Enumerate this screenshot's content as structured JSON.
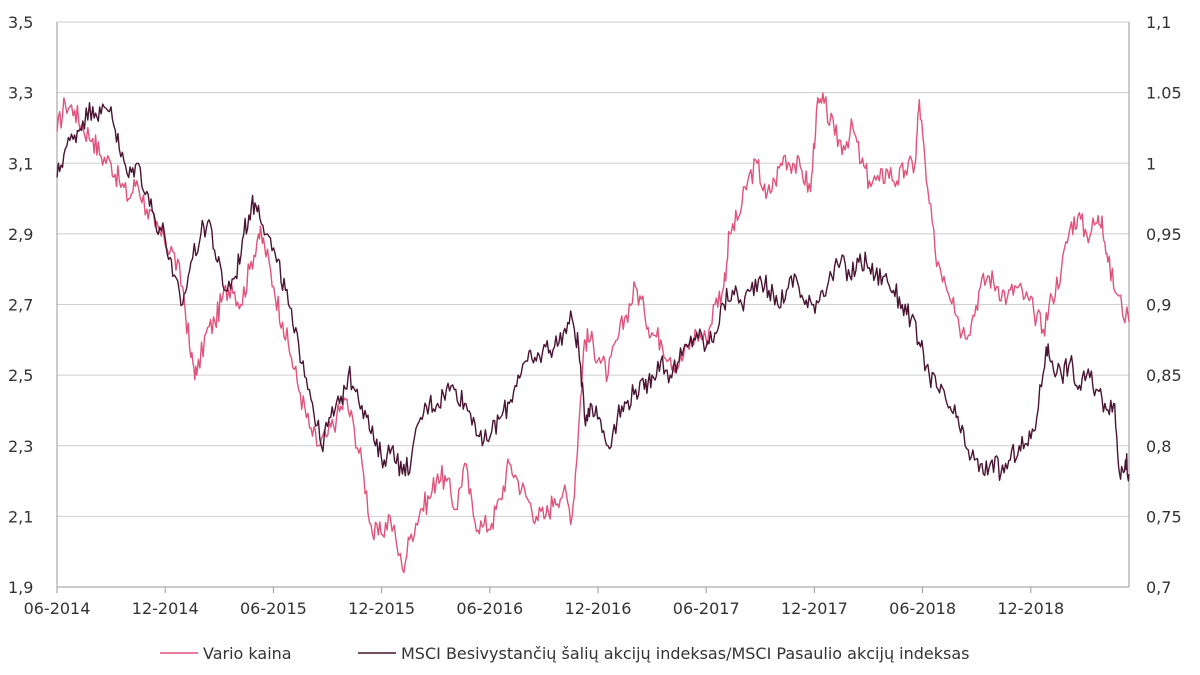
{
  "chart_data": {
    "type": "line",
    "title": "",
    "xlabel": "",
    "ylabel": "",
    "y2label": "",
    "x_ticks": [
      "06-2014",
      "12-2014",
      "06-2015",
      "12-2015",
      "06-2016",
      "12-2016",
      "06-2017",
      "12-2017",
      "06-2018",
      "12-2018"
    ],
    "x_range": [
      "2014-06-01",
      "2019-05-31"
    ],
    "ylim_left": [
      1.9,
      3.5
    ],
    "yticks_left": [
      "1,9",
      "2,1",
      "2,3",
      "2,5",
      "2,7",
      "2,9",
      "3,1",
      "3,3",
      "3,5"
    ],
    "ylim_right": [
      0.7,
      1.1
    ],
    "yticks_right": [
      "0,7",
      "0,75",
      "0,8",
      "0,85",
      "0,9",
      "0,95",
      "1",
      "1.05",
      "1,1"
    ],
    "grid": "horizontal",
    "legend_position": "bottom",
    "series": [
      {
        "name": "Vario kaina",
        "axis": "left",
        "color": "#e0537c",
        "points": [
          [
            "2014-06-01",
            3.19
          ],
          [
            "2014-06-15",
            3.27
          ],
          [
            "2014-07-01",
            3.25
          ],
          [
            "2014-07-15",
            3.2
          ],
          [
            "2014-08-01",
            3.17
          ],
          [
            "2014-08-15",
            3.12
          ],
          [
            "2014-09-01",
            3.1
          ],
          [
            "2014-09-15",
            3.05
          ],
          [
            "2014-10-01",
            3.0
          ],
          [
            "2014-10-15",
            3.05
          ],
          [
            "2014-11-01",
            2.97
          ],
          [
            "2014-11-15",
            2.92
          ],
          [
            "2014-12-01",
            2.88
          ],
          [
            "2014-12-15",
            2.85
          ],
          [
            "2015-01-01",
            2.75
          ],
          [
            "2015-01-15",
            2.55
          ],
          [
            "2015-01-25",
            2.5
          ],
          [
            "2015-02-10",
            2.62
          ],
          [
            "2015-02-25",
            2.65
          ],
          [
            "2015-03-10",
            2.72
          ],
          [
            "2015-03-25",
            2.76
          ],
          [
            "2015-04-10",
            2.7
          ],
          [
            "2015-04-25",
            2.8
          ],
          [
            "2015-05-10",
            2.9
          ],
          [
            "2015-05-20",
            2.87
          ],
          [
            "2015-06-05",
            2.75
          ],
          [
            "2015-06-20",
            2.65
          ],
          [
            "2015-07-05",
            2.55
          ],
          [
            "2015-07-20",
            2.45
          ],
          [
            "2015-08-05",
            2.35
          ],
          [
            "2015-08-20",
            2.3
          ],
          [
            "2015-09-05",
            2.33
          ],
          [
            "2015-09-20",
            2.38
          ],
          [
            "2015-10-05",
            2.43
          ],
          [
            "2015-10-20",
            2.35
          ],
          [
            "2015-11-05",
            2.22
          ],
          [
            "2015-11-20",
            2.05
          ],
          [
            "2015-12-05",
            2.05
          ],
          [
            "2015-12-20",
            2.1
          ],
          [
            "2016-01-10",
            1.95
          ],
          [
            "2016-01-25",
            2.05
          ],
          [
            "2016-02-10",
            2.12
          ],
          [
            "2016-02-25",
            2.15
          ],
          [
            "2016-03-10",
            2.22
          ],
          [
            "2016-03-25",
            2.2
          ],
          [
            "2016-04-10",
            2.12
          ],
          [
            "2016-04-25",
            2.25
          ],
          [
            "2016-05-10",
            2.1
          ],
          [
            "2016-05-25",
            2.07
          ],
          [
            "2016-06-10",
            2.08
          ],
          [
            "2016-06-25",
            2.15
          ],
          [
            "2016-07-10",
            2.25
          ],
          [
            "2016-07-25",
            2.2
          ],
          [
            "2016-08-10",
            2.15
          ],
          [
            "2016-08-25",
            2.1
          ],
          [
            "2016-09-10",
            2.1
          ],
          [
            "2016-09-25",
            2.15
          ],
          [
            "2016-10-10",
            2.17
          ],
          [
            "2016-10-25",
            2.1
          ],
          [
            "2016-11-05",
            2.35
          ],
          [
            "2016-11-15",
            2.6
          ],
          [
            "2016-11-25",
            2.6
          ],
          [
            "2016-12-10",
            2.55
          ],
          [
            "2016-12-25",
            2.5
          ],
          [
            "2017-01-10",
            2.6
          ],
          [
            "2017-01-25",
            2.67
          ],
          [
            "2017-02-10",
            2.75
          ],
          [
            "2017-02-25",
            2.68
          ],
          [
            "2017-03-10",
            2.62
          ],
          [
            "2017-03-25",
            2.6
          ],
          [
            "2017-04-10",
            2.55
          ],
          [
            "2017-04-25",
            2.53
          ],
          [
            "2017-05-10",
            2.58
          ],
          [
            "2017-05-25",
            2.62
          ],
          [
            "2017-06-10",
            2.6
          ],
          [
            "2017-06-25",
            2.7
          ],
          [
            "2017-07-10",
            2.75
          ],
          [
            "2017-07-20",
            2.9
          ],
          [
            "2017-08-05",
            2.95
          ],
          [
            "2017-08-20",
            3.05
          ],
          [
            "2017-09-05",
            3.1
          ],
          [
            "2017-09-20",
            3.0
          ],
          [
            "2017-10-05",
            3.05
          ],
          [
            "2017-10-20",
            3.12
          ],
          [
            "2017-11-05",
            3.1
          ],
          [
            "2017-11-20",
            3.08
          ],
          [
            "2017-12-05",
            3.02
          ],
          [
            "2017-12-15",
            3.25
          ],
          [
            "2017-12-28",
            3.27
          ],
          [
            "2018-01-15",
            3.18
          ],
          [
            "2018-01-30",
            3.15
          ],
          [
            "2018-02-15",
            3.2
          ],
          [
            "2018-03-01",
            3.1
          ],
          [
            "2018-03-15",
            3.05
          ],
          [
            "2018-04-01",
            3.05
          ],
          [
            "2018-04-15",
            3.08
          ],
          [
            "2018-05-01",
            3.05
          ],
          [
            "2018-05-15",
            3.08
          ],
          [
            "2018-06-01",
            3.1
          ],
          [
            "2018-06-08",
            3.28
          ],
          [
            "2018-06-20",
            3.05
          ],
          [
            "2018-07-05",
            2.85
          ],
          [
            "2018-07-20",
            2.78
          ],
          [
            "2018-08-05",
            2.72
          ],
          [
            "2018-08-20",
            2.62
          ],
          [
            "2018-09-05",
            2.65
          ],
          [
            "2018-09-20",
            2.75
          ],
          [
            "2018-10-05",
            2.78
          ],
          [
            "2018-10-20",
            2.75
          ],
          [
            "2018-11-05",
            2.72
          ],
          [
            "2018-11-20",
            2.75
          ],
          [
            "2018-12-05",
            2.72
          ],
          [
            "2018-12-20",
            2.68
          ],
          [
            "2019-01-05",
            2.63
          ],
          [
            "2019-01-20",
            2.72
          ],
          [
            "2019-02-05",
            2.8
          ],
          [
            "2019-02-20",
            2.92
          ],
          [
            "2019-03-05",
            2.95
          ],
          [
            "2019-03-20",
            2.9
          ],
          [
            "2019-04-05",
            2.93
          ],
          [
            "2019-04-15",
            2.95
          ],
          [
            "2019-04-25",
            2.82
          ],
          [
            "2019-05-10",
            2.73
          ],
          [
            "2019-05-31",
            2.65
          ]
        ]
      },
      {
        "name": "MSCI Besivystančių šalių akcijų indeksas/MSCI Pasaulio akcijų indeksas",
        "axis": "right",
        "color": "#4a1532",
        "points": [
          [
            "2014-06-01",
            0.99
          ],
          [
            "2014-06-15",
            1.01
          ],
          [
            "2014-07-01",
            1.02
          ],
          [
            "2014-07-15",
            1.03
          ],
          [
            "2014-08-01",
            1.04
          ],
          [
            "2014-08-15",
            1.035
          ],
          [
            "2014-09-01",
            1.04
          ],
          [
            "2014-09-15",
            1.01
          ],
          [
            "2014-10-01",
            0.99
          ],
          [
            "2014-10-15",
            1.0
          ],
          [
            "2014-11-01",
            0.98
          ],
          [
            "2014-11-15",
            0.96
          ],
          [
            "2014-12-01",
            0.95
          ],
          [
            "2014-12-15",
            0.92
          ],
          [
            "2015-01-01",
            0.9
          ],
          [
            "2015-01-15",
            0.93
          ],
          [
            "2015-02-01",
            0.95
          ],
          [
            "2015-02-15",
            0.96
          ],
          [
            "2015-03-01",
            0.93
          ],
          [
            "2015-03-15",
            0.91
          ],
          [
            "2015-04-01",
            0.92
          ],
          [
            "2015-04-15",
            0.95
          ],
          [
            "2015-04-28",
            0.97
          ],
          [
            "2015-05-10",
            0.97
          ],
          [
            "2015-05-25",
            0.95
          ],
          [
            "2015-06-10",
            0.93
          ],
          [
            "2015-06-25",
            0.91
          ],
          [
            "2015-07-10",
            0.88
          ],
          [
            "2015-07-25",
            0.86
          ],
          [
            "2015-08-10",
            0.83
          ],
          [
            "2015-08-25",
            0.8
          ],
          [
            "2015-09-10",
            0.82
          ],
          [
            "2015-09-25",
            0.83
          ],
          [
            "2015-10-10",
            0.85
          ],
          [
            "2015-10-25",
            0.84
          ],
          [
            "2015-11-10",
            0.82
          ],
          [
            "2015-11-25",
            0.8
          ],
          [
            "2015-12-10",
            0.79
          ],
          [
            "2015-12-25",
            0.8
          ],
          [
            "2016-01-10",
            0.78
          ],
          [
            "2016-01-25",
            0.79
          ],
          [
            "2016-02-10",
            0.82
          ],
          [
            "2016-02-25",
            0.83
          ],
          [
            "2016-03-10",
            0.83
          ],
          [
            "2016-03-25",
            0.84
          ],
          [
            "2016-04-10",
            0.84
          ],
          [
            "2016-04-25",
            0.83
          ],
          [
            "2016-05-10",
            0.82
          ],
          [
            "2016-05-25",
            0.8
          ],
          [
            "2016-06-10",
            0.81
          ],
          [
            "2016-06-25",
            0.82
          ],
          [
            "2016-07-10",
            0.83
          ],
          [
            "2016-07-25",
            0.85
          ],
          [
            "2016-08-10",
            0.86
          ],
          [
            "2016-08-25",
            0.86
          ],
          [
            "2016-09-10",
            0.87
          ],
          [
            "2016-09-25",
            0.87
          ],
          [
            "2016-10-10",
            0.88
          ],
          [
            "2016-10-25",
            0.89
          ],
          [
            "2016-11-05",
            0.87
          ],
          [
            "2016-11-15",
            0.82
          ],
          [
            "2016-11-25",
            0.83
          ],
          [
            "2016-12-10",
            0.82
          ],
          [
            "2016-12-25",
            0.8
          ],
          [
            "2017-01-10",
            0.82
          ],
          [
            "2017-01-25",
            0.83
          ],
          [
            "2017-02-10",
            0.84
          ],
          [
            "2017-02-25",
            0.84
          ],
          [
            "2017-03-10",
            0.85
          ],
          [
            "2017-03-25",
            0.86
          ],
          [
            "2017-04-10",
            0.85
          ],
          [
            "2017-04-25",
            0.86
          ],
          [
            "2017-05-10",
            0.87
          ],
          [
            "2017-05-25",
            0.88
          ],
          [
            "2017-06-10",
            0.87
          ],
          [
            "2017-06-25",
            0.88
          ],
          [
            "2017-07-10",
            0.9
          ],
          [
            "2017-07-25",
            0.91
          ],
          [
            "2017-08-10",
            0.9
          ],
          [
            "2017-08-25",
            0.91
          ],
          [
            "2017-09-10",
            0.92
          ],
          [
            "2017-09-25",
            0.91
          ],
          [
            "2017-10-10",
            0.9
          ],
          [
            "2017-10-25",
            0.91
          ],
          [
            "2017-11-10",
            0.92
          ],
          [
            "2017-11-25",
            0.9
          ],
          [
            "2017-12-10",
            0.9
          ],
          [
            "2017-12-25",
            0.91
          ],
          [
            "2018-01-10",
            0.92
          ],
          [
            "2018-01-25",
            0.93
          ],
          [
            "2018-02-10",
            0.92
          ],
          [
            "2018-02-25",
            0.93
          ],
          [
            "2018-03-10",
            0.93
          ],
          [
            "2018-03-25",
            0.92
          ],
          [
            "2018-04-10",
            0.92
          ],
          [
            "2018-04-25",
            0.91
          ],
          [
            "2018-05-10",
            0.9
          ],
          [
            "2018-05-25",
            0.89
          ],
          [
            "2018-06-10",
            0.87
          ],
          [
            "2018-06-25",
            0.85
          ],
          [
            "2018-07-10",
            0.84
          ],
          [
            "2018-07-25",
            0.83
          ],
          [
            "2018-08-10",
            0.82
          ],
          [
            "2018-08-25",
            0.8
          ],
          [
            "2018-09-10",
            0.79
          ],
          [
            "2018-09-25",
            0.78
          ],
          [
            "2018-10-10",
            0.79
          ],
          [
            "2018-10-25",
            0.78
          ],
          [
            "2018-11-10",
            0.79
          ],
          [
            "2018-11-25",
            0.8
          ],
          [
            "2018-12-10",
            0.8
          ],
          [
            "2018-12-25",
            0.82
          ],
          [
            "2019-01-10",
            0.87
          ],
          [
            "2019-01-20",
            0.86
          ],
          [
            "2019-02-05",
            0.85
          ],
          [
            "2019-02-20",
            0.86
          ],
          [
            "2019-03-05",
            0.84
          ],
          [
            "2019-03-20",
            0.85
          ],
          [
            "2019-04-05",
            0.84
          ],
          [
            "2019-04-20",
            0.83
          ],
          [
            "2019-05-05",
            0.83
          ],
          [
            "2019-05-15",
            0.78
          ],
          [
            "2019-05-25",
            0.79
          ],
          [
            "2019-05-31",
            0.78
          ]
        ]
      }
    ]
  }
}
